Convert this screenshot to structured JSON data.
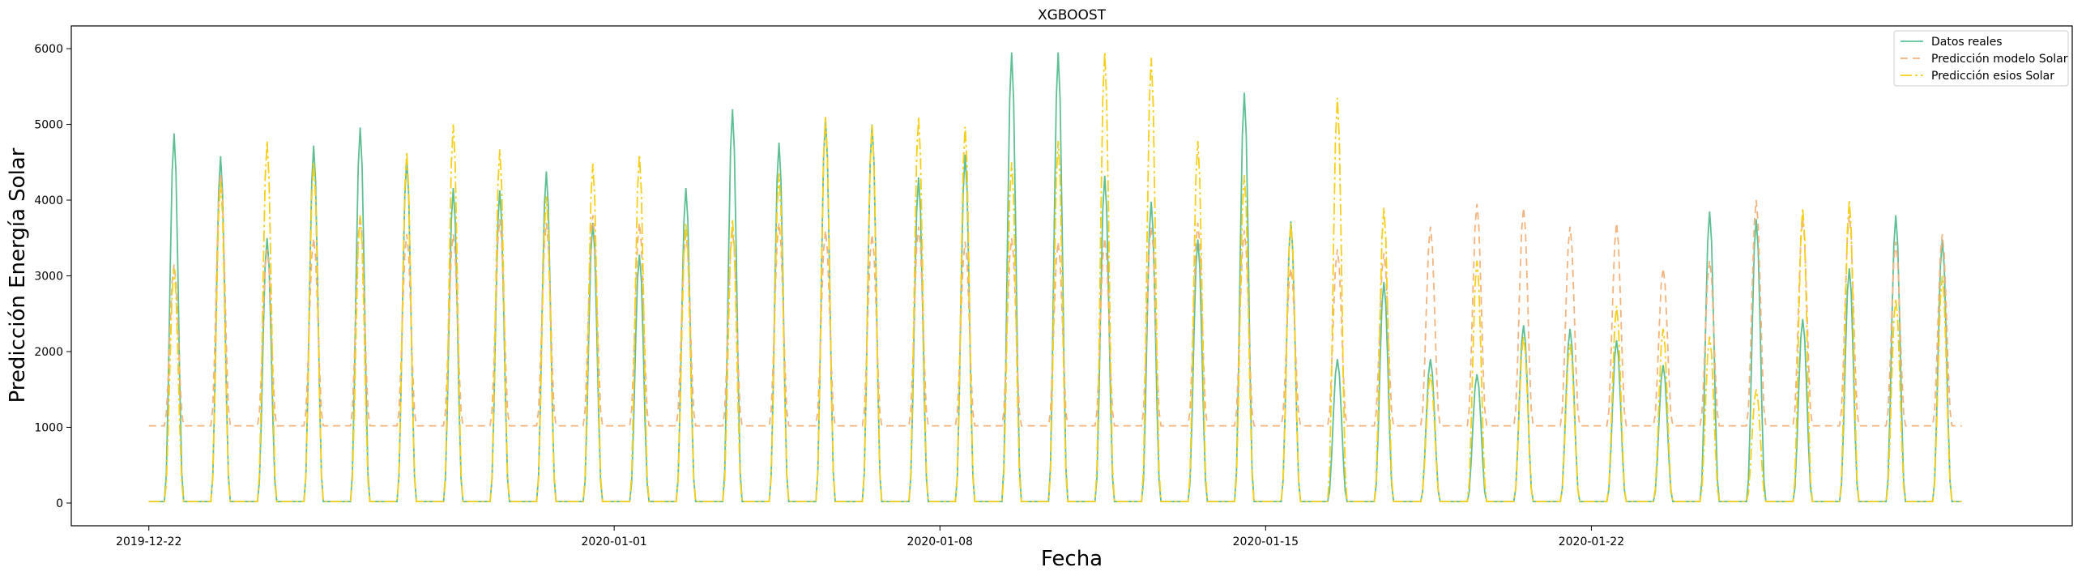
{
  "chart_data": {
    "type": "line",
    "title": "XGBOOST",
    "xlabel": "Fecha",
    "ylabel": "Predicción Energía Solar",
    "x_start": "2019-12-22",
    "x_end": "2020-01-31",
    "xlim": [
      "2019-12-20 08:00",
      "2020-02-01 08:00"
    ],
    "ylim": [
      -300,
      6300
    ],
    "xticks": [
      "2019-12-22",
      "2020-01-01",
      "2020-01-08",
      "2020-01-15",
      "2020-01-22"
    ],
    "yticks": [
      0,
      1000,
      2000,
      3000,
      4000,
      5000,
      6000
    ],
    "grid": false,
    "legend_position": "top-right",
    "series": [
      {
        "name": "Datos reales",
        "color": "#5fbf94",
        "dash": "none",
        "daily_peaks": [
          4880,
          4580,
          3500,
          4720,
          4960,
          4540,
          4160,
          4130,
          4380,
          3700,
          3280,
          4160,
          5200,
          4760,
          5080,
          5000,
          4300,
          4600,
          5950,
          5950,
          4320,
          3980,
          3480,
          5420,
          3720,
          1900,
          2920,
          1900,
          1700,
          2350,
          2300,
          2150,
          1820,
          3850,
          3750,
          2430,
          3100,
          3800,
          3480
        ]
      },
      {
        "name": "Predicción modelo Solar",
        "color": "#f2b37f",
        "dash": "9,6",
        "night_level": 1020,
        "daily_peaks": [
          3150,
          4350,
          3350,
          3500,
          3800,
          3550,
          3550,
          3750,
          3700,
          3800,
          3700,
          3550,
          3600,
          3700,
          3600,
          3550,
          3650,
          3450,
          3500,
          3450,
          3500,
          3650,
          3700,
          3600,
          3100,
          3350,
          3300,
          3650,
          3950,
          3900,
          3650,
          3700,
          3100,
          3200,
          4000,
          3750,
          3800,
          3450,
          3550
        ]
      },
      {
        "name": "Predicción esios Solar",
        "color": "#f5cf1a",
        "dash": "14,4,3,4",
        "daily_peaks": [
          3100,
          4250,
          4780,
          4500,
          3800,
          4640,
          5000,
          4670,
          4050,
          4480,
          4600,
          3700,
          3750,
          4350,
          5100,
          5000,
          5100,
          4970,
          4500,
          4780,
          5950,
          5880,
          4780,
          4330,
          3700,
          5350,
          3900,
          1700,
          3200,
          2200,
          2100,
          2600,
          2300,
          2200,
          1500,
          3900,
          4000,
          2700,
          3000
        ]
      }
    ]
  }
}
